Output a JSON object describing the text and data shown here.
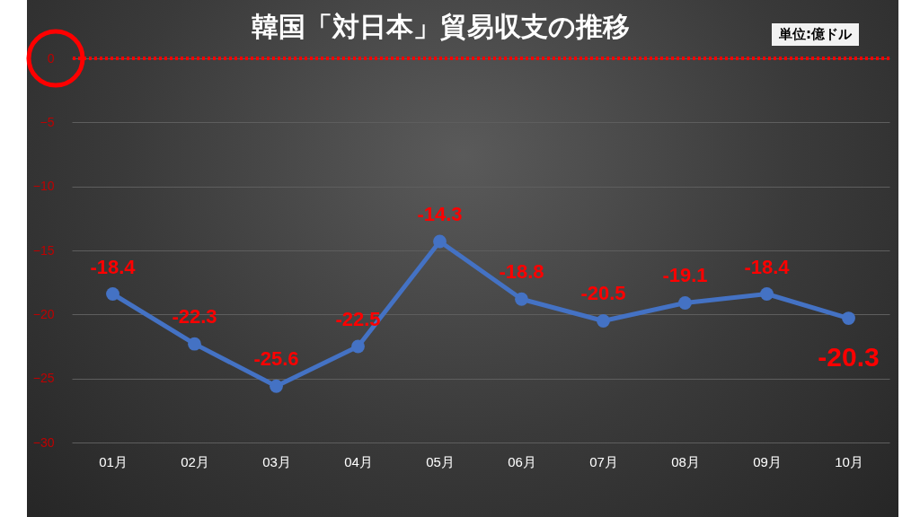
{
  "chart_data": {
    "type": "line",
    "title": "韓国「対日本」貿易収支の推移",
    "annotations": [
      "単位:億ドル"
    ],
    "categories": [
      "01月",
      "02月",
      "03月",
      "04月",
      "05月",
      "06月",
      "07月",
      "08月",
      "09月",
      "10月"
    ],
    "series": [
      {
        "color": "#4472c4",
        "values": [
          -18.4,
          -22.3,
          -25.6,
          -22.5,
          -14.3,
          -18.8,
          -20.5,
          -19.1,
          -18.4,
          -20.3
        ]
      }
    ],
    "ylim": [
      -30,
      0
    ],
    "yticks": [
      0,
      -5,
      -10,
      -15,
      -20,
      -25,
      -30
    ],
    "grid": "y",
    "marker": "circle",
    "line_style": "solid",
    "data_labels": true,
    "ref_lines": [
      {
        "axis": "y",
        "value": 0,
        "color": "#ff0000",
        "line_style": "dotted"
      }
    ]
  }
}
